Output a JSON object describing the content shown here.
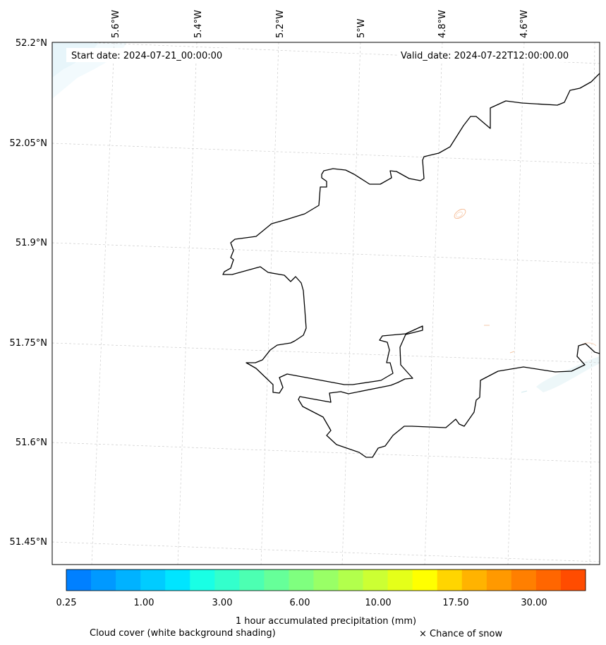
{
  "map": {
    "lat_labels": [
      "52.2°N",
      "52.05°N",
      "51.9°N",
      "51.75°N",
      "51.6°N",
      "51.45°N"
    ],
    "lon_labels": [
      "5.6°W",
      "5.4°W",
      "5.2°W",
      "5°W",
      "4.8°W",
      "4.6°W"
    ],
    "start_date": "Start date: 2024-07-21_00:00:00",
    "valid_date": "Valid_date: 2024-07-22T12:00:00.00"
  },
  "colorbar": {
    "title": "1 hour accumulated precipitation (mm)",
    "tick_labels": [
      "0.25",
      "1.00",
      "3.00",
      "6.00",
      "10.00",
      "17.50",
      "30.00"
    ],
    "colors": [
      "#0080ff",
      "#0099ff",
      "#00b2ff",
      "#00ccff",
      "#00e5ff",
      "#19ffe5",
      "#33ffcc",
      "#4cffb2",
      "#66ff99",
      "#7fff7f",
      "#99ff66",
      "#b2ff4c",
      "#ccff33",
      "#e5ff19",
      "#ffff00",
      "#ffd500",
      "#ffb300",
      "#ff9900",
      "#ff7f00",
      "#ff6600",
      "#ff4c00"
    ]
  },
  "legend": {
    "cloud_cover": "Cloud cover (white background shading)",
    "snow": "× Chance of snow"
  }
}
